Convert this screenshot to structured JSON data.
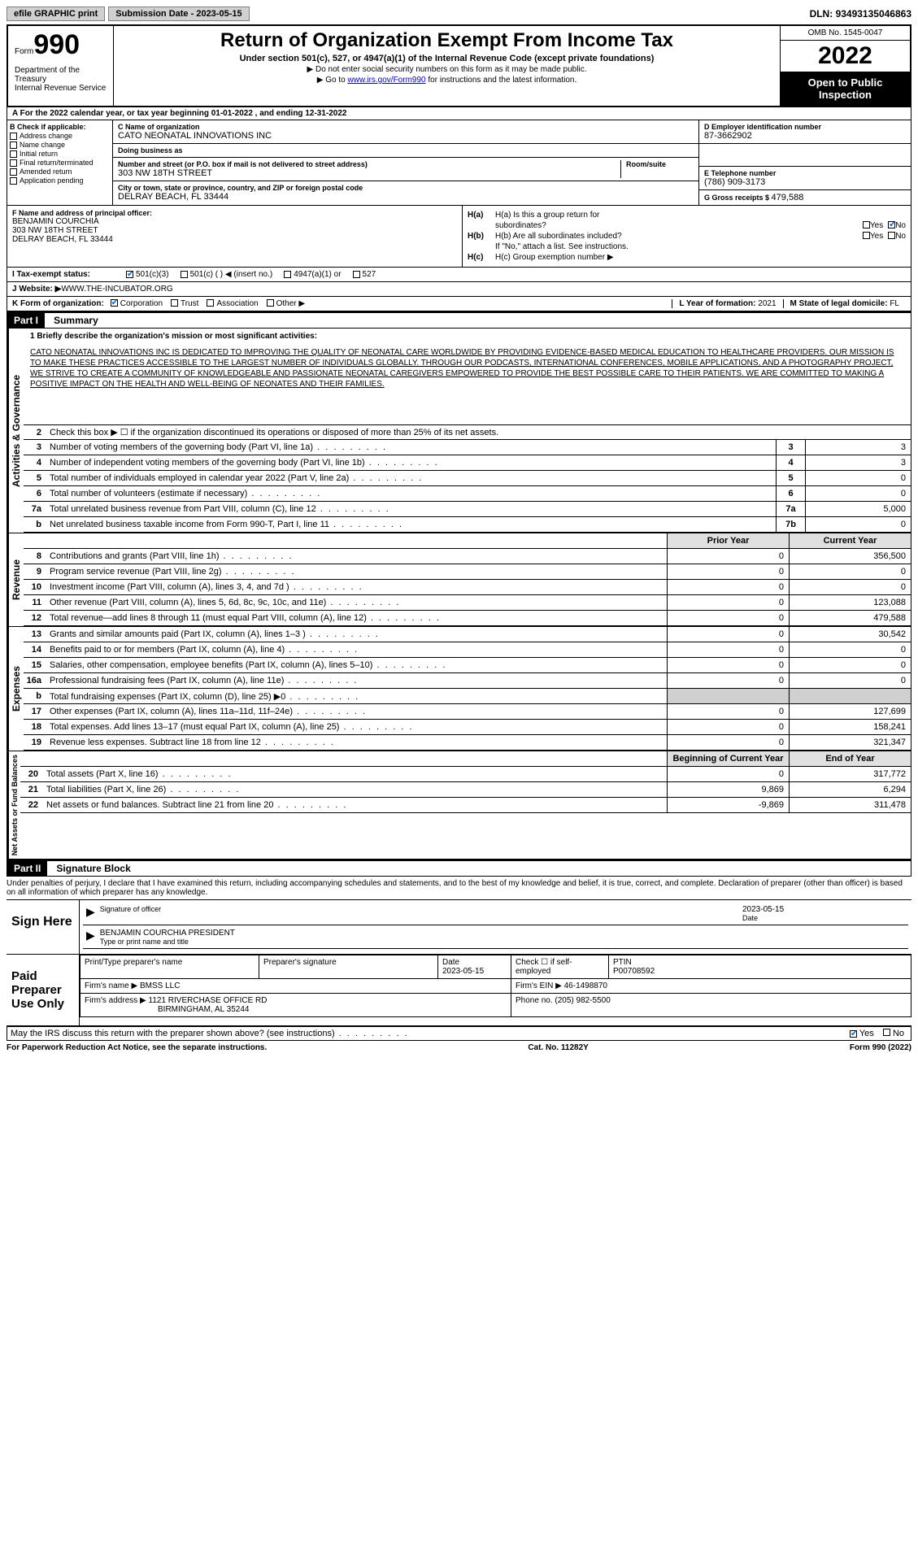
{
  "top": {
    "efile": "efile GRAPHIC print",
    "sub_label": "Submission Date - ",
    "sub_date": "2023-05-15",
    "dln_label": "DLN: ",
    "dln": "93493135046863"
  },
  "header": {
    "form_word": "Form",
    "form_num": "990",
    "dept": "Department of the Treasury\nInternal Revenue Service",
    "title": "Return of Organization Exempt From Income Tax",
    "subtitle": "Under section 501(c), 527, or 4947(a)(1) of the Internal Revenue Code (except private foundations)",
    "instr1": "▶ Do not enter social security numbers on this form as it may be made public.",
    "instr2_pre": "▶ Go to ",
    "instr2_link": "www.irs.gov/Form990",
    "instr2_post": " for instructions and the latest information.",
    "omb": "OMB No. 1545-0047",
    "year": "2022",
    "open_pub": "Open to Public Inspection"
  },
  "tax_year": "A For the 2022 calendar year, or tax year beginning 01-01-2022    , and ending 12-31-2022",
  "col_b": {
    "label": "B Check if applicable:",
    "items": [
      "Address change",
      "Name change",
      "Initial return",
      "Final return/terminated",
      "Amended return",
      "Application pending"
    ]
  },
  "col_c": {
    "name_label": "C Name of organization",
    "name": "CATO NEONATAL INNOVATIONS INC",
    "dba_label": "Doing business as",
    "dba": "",
    "street_label": "Number and street (or P.O. box if mail is not delivered to street address)",
    "street": "303 NW 18TH STREET",
    "room_label": "Room/suite",
    "city_label": "City or town, state or province, country, and ZIP or foreign postal code",
    "city": "DELRAY BEACH, FL  33444"
  },
  "col_d": {
    "ein_label": "D Employer identification number",
    "ein": "87-3662902",
    "phone_label": "E Telephone number",
    "phone": "(786) 909-3173",
    "receipts_label": "G Gross receipts $ ",
    "receipts": "479,588"
  },
  "f": {
    "label": "F  Name and address of principal officer:",
    "name": "BENJAMIN COURCHIA",
    "street": "303 NW 18TH STREET",
    "city": "DELRAY BEACH, FL  33444"
  },
  "h": {
    "ha_label": "H(a)  Is this a group return for",
    "ha_sub": "subordinates?",
    "hb_label": "H(b)  Are all subordinates included?",
    "hb_note": "If \"No,\" attach a list. See instructions.",
    "hc_label": "H(c)  Group exemption number ▶",
    "yes": "Yes",
    "no": "No"
  },
  "i": {
    "label": "I    Tax-exempt status:",
    "opts": [
      "501(c)(3)",
      "501(c) (   ) ◀ (insert no.)",
      "4947(a)(1) or",
      "527"
    ]
  },
  "j": {
    "label": "J    Website: ▶",
    "val": " WWW.THE-INCUBATOR.ORG"
  },
  "k": {
    "label": "K Form of organization:",
    "opts": [
      "Corporation",
      "Trust",
      "Association",
      "Other ▶"
    ]
  },
  "l": {
    "label": "L Year of formation: ",
    "val": "2021"
  },
  "m": {
    "label": "M State of legal domicile: ",
    "val": "FL"
  },
  "part1": {
    "num": "Part I",
    "title": "Summary"
  },
  "mission_label": "1    Briefly describe the organization's mission or most significant activities:",
  "mission": "CATO NEONATAL INNOVATIONS INC IS DEDICATED TO IMPROVING THE QUALITY OF NEONATAL CARE WORLDWIDE BY PROVIDING EVIDENCE-BASED MEDICAL EDUCATION TO HEALTHCARE PROVIDERS. OUR MISSION IS TO MAKE THESE PRACTICES ACCESSIBLE TO THE LARGEST NUMBER OF INDIVIDUALS GLOBALLY. THROUGH OUR PODCASTS, INTERNATIONAL CONFERENCES, MOBILE APPLICATIONS, AND A PHOTOGRAPHY PROJECT, WE STRIVE TO CREATE A COMMUNITY OF KNOWLEDGEABLE AND PASSIONATE NEONATAL CAREGIVERS EMPOWERED TO PROVIDE THE BEST POSSIBLE CARE TO THEIR PATIENTS. WE ARE COMMITTED TO MAKING A POSITIVE IMPACT ON THE HEALTH AND WELL-BEING OF NEONATES AND THEIR FAMILIES.",
  "gov_lines": [
    {
      "n": "2",
      "t": "Check this box ▶ ☐ if the organization discontinued its operations or disposed of more than 25% of its net assets.",
      "ln": "",
      "v": ""
    },
    {
      "n": "3",
      "t": "Number of voting members of the governing body (Part VI, line 1a)",
      "ln": "3",
      "v": "3"
    },
    {
      "n": "4",
      "t": "Number of independent voting members of the governing body (Part VI, line 1b)",
      "ln": "4",
      "v": "3"
    },
    {
      "n": "5",
      "t": "Total number of individuals employed in calendar year 2022 (Part V, line 2a)",
      "ln": "5",
      "v": "0"
    },
    {
      "n": "6",
      "t": "Total number of volunteers (estimate if necessary)",
      "ln": "6",
      "v": "0"
    },
    {
      "n": "7a",
      "t": "Total unrelated business revenue from Part VIII, column (C), line 12",
      "ln": "7a",
      "v": "5,000"
    },
    {
      "n": "b",
      "t": "Net unrelated business taxable income from Form 990-T, Part I, line 11",
      "ln": "7b",
      "v": "0"
    }
  ],
  "col_hdrs": {
    "prior": "Prior Year",
    "current": "Current Year",
    "begin": "Beginning of Current Year",
    "end": "End of Year"
  },
  "revenue": [
    {
      "n": "8",
      "t": "Contributions and grants (Part VIII, line 1h)",
      "p": "0",
      "c": "356,500"
    },
    {
      "n": "9",
      "t": "Program service revenue (Part VIII, line 2g)",
      "p": "0",
      "c": "0"
    },
    {
      "n": "10",
      "t": "Investment income (Part VIII, column (A), lines 3, 4, and 7d )",
      "p": "0",
      "c": "0"
    },
    {
      "n": "11",
      "t": "Other revenue (Part VIII, column (A), lines 5, 6d, 8c, 9c, 10c, and 11e)",
      "p": "0",
      "c": "123,088"
    },
    {
      "n": "12",
      "t": "Total revenue—add lines 8 through 11 (must equal Part VIII, column (A), line 12)",
      "p": "0",
      "c": "479,588"
    }
  ],
  "expenses": [
    {
      "n": "13",
      "t": "Grants and similar amounts paid (Part IX, column (A), lines 1–3 )",
      "p": "0",
      "c": "30,542"
    },
    {
      "n": "14",
      "t": "Benefits paid to or for members (Part IX, column (A), line 4)",
      "p": "0",
      "c": "0"
    },
    {
      "n": "15",
      "t": "Salaries, other compensation, employee benefits (Part IX, column (A), lines 5–10)",
      "p": "0",
      "c": "0"
    },
    {
      "n": "16a",
      "t": "Professional fundraising fees (Part IX, column (A), line 11e)",
      "p": "0",
      "c": "0"
    },
    {
      "n": "b",
      "t": "Total fundraising expenses (Part IX, column (D), line 25) ▶0",
      "p": "",
      "c": "",
      "gray": true
    },
    {
      "n": "17",
      "t": "Other expenses (Part IX, column (A), lines 11a–11d, 11f–24e)",
      "p": "0",
      "c": "127,699"
    },
    {
      "n": "18",
      "t": "Total expenses. Add lines 13–17 (must equal Part IX, column (A), line 25)",
      "p": "0",
      "c": "158,241"
    },
    {
      "n": "19",
      "t": "Revenue less expenses. Subtract line 18 from line 12",
      "p": "0",
      "c": "321,347"
    }
  ],
  "netassets": [
    {
      "n": "20",
      "t": "Total assets (Part X, line 16)",
      "p": "0",
      "c": "317,772"
    },
    {
      "n": "21",
      "t": "Total liabilities (Part X, line 26)",
      "p": "9,869",
      "c": "6,294"
    },
    {
      "n": "22",
      "t": "Net assets or fund balances. Subtract line 21 from line 20",
      "p": "-9,869",
      "c": "311,478"
    }
  ],
  "side_tabs": {
    "gov": "Activities & Governance",
    "rev": "Revenue",
    "exp": "Expenses",
    "na": "Net Assets or Fund Balances"
  },
  "part2": {
    "num": "Part II",
    "title": "Signature Block"
  },
  "perjury": "Under penalties of perjury, I declare that I have examined this return, including accompanying schedules and statements, and to the best of my knowledge and belief, it is true, correct, and complete. Declaration of preparer (other than officer) is based on all information of which preparer has any knowledge.",
  "sign": {
    "label": "Sign Here",
    "sig_of": "Signature of officer",
    "date_label": "Date",
    "date": "2023-05-15",
    "name": "BENJAMIN COURCHIA  PRESIDENT",
    "name_label": "Type or print name and title"
  },
  "prep": {
    "label": "Paid Preparer Use Only",
    "h1": "Print/Type preparer's name",
    "h2": "Preparer's signature",
    "h3": "Date",
    "h4": "Check ☐ if self-employed",
    "h5": "PTIN",
    "date": "2023-05-15",
    "ptin": "P00708592",
    "firm_label": "Firm's name   ▶",
    "firm": "BMSS LLC",
    "ein_label": "Firm's EIN ▶",
    "ein": "46-1498870",
    "addr_label": "Firm's address ▶",
    "addr1": "1121 RIVERCHASE OFFICE RD",
    "addr2": "BIRMINGHAM, AL  35244",
    "phone_label": "Phone no.",
    "phone": "(205) 982-5500"
  },
  "discuss": {
    "text": "May the IRS discuss this return with the preparer shown above? (see instructions)",
    "yes": "Yes",
    "no": "No"
  },
  "footer": {
    "left": "For Paperwork Reduction Act Notice, see the separate instructions.",
    "mid": "Cat. No. 11282Y",
    "right": "Form 990 (2022)"
  }
}
